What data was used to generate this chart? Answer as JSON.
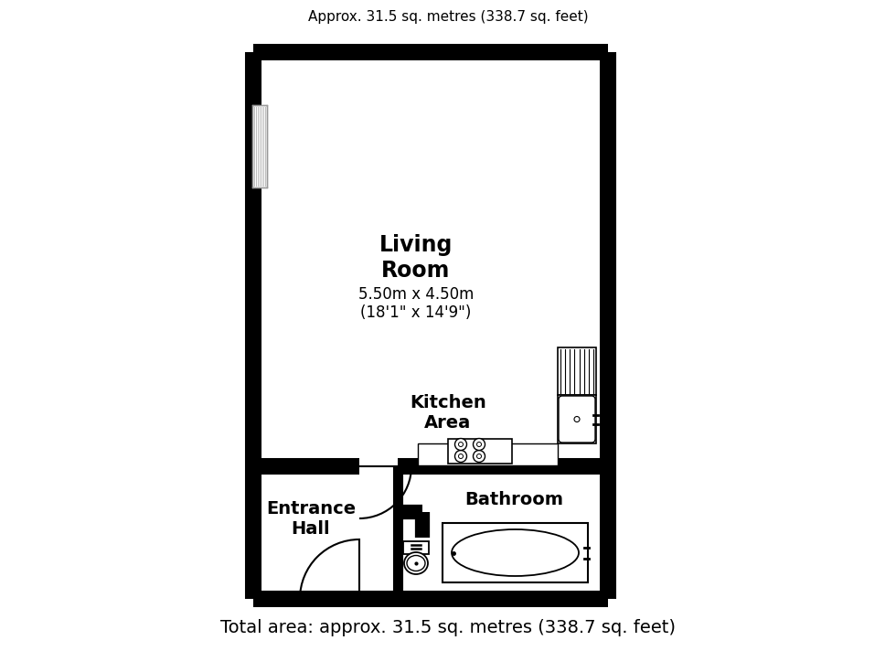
{
  "title_top": "Approx. 31.5 sq. metres (338.7 sq. feet)",
  "title_bottom": "Total area: approx. 31.5 sq. metres (338.7 sq. feet)",
  "rooms": {
    "living_room": {
      "label": "Living\nRoom",
      "sublabel": "5.50m x 4.50m\n(18'1\" x 14'9\")"
    },
    "kitchen": {
      "label": "Kitchen\nArea"
    },
    "entrance": {
      "label": "Entrance\nHall"
    },
    "bathroom": {
      "label": "Bathroom"
    }
  },
  "bg_color": "#ffffff",
  "wall_color": "#000000",
  "fixture_color": "#000000",
  "text_color": "#000000",
  "outer_lw": 13,
  "inner_lw": 8,
  "fixture_lw": 1.5
}
